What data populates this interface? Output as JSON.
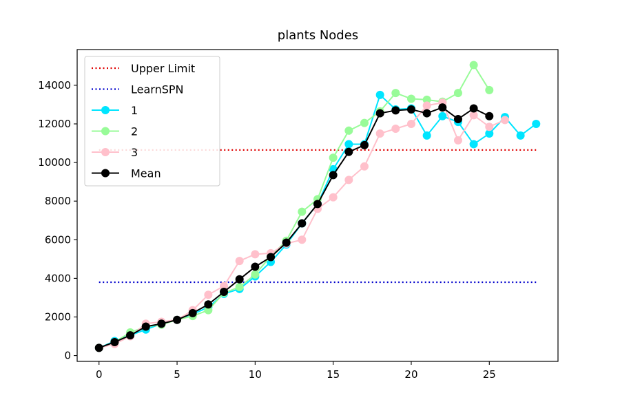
{
  "chart_data": {
    "type": "line",
    "title": "plants Nodes",
    "xlabel": "",
    "ylabel": "",
    "xlim": [
      -1.4,
      29.4
    ],
    "ylim": [
      -300,
      15850
    ],
    "xticks": [
      0,
      5,
      10,
      15,
      20,
      25
    ],
    "yticks": [
      0,
      2000,
      4000,
      6000,
      8000,
      10000,
      12000,
      14000
    ],
    "grid": false,
    "legend_position": "top-left",
    "reference_lines": [
      {
        "name": "Upper Limit",
        "value": 10650,
        "x_range": [
          0,
          28
        ],
        "color": "#e00000",
        "style": "dotted"
      },
      {
        "name": "LearnSPN",
        "value": 3800,
        "x_range": [
          0,
          28
        ],
        "color": "#0000cc",
        "style": "dotted"
      }
    ],
    "series": [
      {
        "name": "1",
        "color": "#00e5ff",
        "x": [
          0,
          1,
          2,
          3,
          4,
          5,
          6,
          7,
          8,
          9,
          10,
          11,
          12,
          13,
          14,
          15,
          16,
          17,
          18,
          19,
          20,
          21,
          22,
          23,
          24,
          25,
          26,
          27,
          28
        ],
        "values": [
          400,
          750,
          1050,
          1350,
          1650,
          1850,
          2150,
          2500,
          3200,
          3450,
          4100,
          4850,
          5750,
          6850,
          7850,
          9650,
          10950,
          10950,
          13500,
          12750,
          12800,
          11400,
          12400,
          12100,
          10950,
          11500,
          12350,
          11400,
          12000
        ]
      },
      {
        "name": "2",
        "color": "#98fb98",
        "x": [
          0,
          1,
          2,
          3,
          4,
          5,
          6,
          7,
          8,
          9,
          10,
          11,
          12,
          13,
          14,
          15,
          16,
          17,
          18,
          19,
          20,
          21,
          22,
          23,
          24,
          25
        ],
        "values": [
          400,
          700,
          1200,
          1500,
          1600,
          1850,
          2050,
          2350,
          3250,
          3550,
          4200,
          5150,
          5950,
          7450,
          8100,
          10250,
          11650,
          12050,
          12650,
          13600,
          13300,
          13250,
          13150,
          13600,
          15050,
          13750
        ]
      },
      {
        "name": "3",
        "color": "#ffc0cb",
        "x": [
          0,
          1,
          2,
          3,
          4,
          5,
          6,
          7,
          8,
          9,
          10,
          11,
          12,
          13,
          14,
          15,
          16,
          17,
          18,
          19,
          20,
          21,
          22,
          23,
          24,
          25,
          26
        ],
        "values": [
          400,
          600,
          1000,
          1650,
          1750,
          1850,
          2350,
          3150,
          3600,
          4900,
          5250,
          5300,
          5800,
          6000,
          7600,
          8200,
          9100,
          9800,
          11500,
          11750,
          12000,
          12950,
          13100,
          11150,
          12450,
          11850,
          12200
        ]
      },
      {
        "name": "Mean",
        "color": "#000000",
        "x": [
          0,
          1,
          2,
          3,
          4,
          5,
          6,
          7,
          8,
          9,
          10,
          11,
          12,
          13,
          14,
          15,
          16,
          17,
          18,
          19,
          20,
          21,
          22,
          23,
          24,
          25
        ],
        "values": [
          400,
          700,
          1050,
          1500,
          1650,
          1850,
          2200,
          2650,
          3300,
          3950,
          4600,
          5100,
          5850,
          6850,
          7850,
          9350,
          10550,
          10900,
          12550,
          12700,
          12750,
          12550,
          12850,
          12250,
          12800,
          12400
        ]
      }
    ]
  }
}
